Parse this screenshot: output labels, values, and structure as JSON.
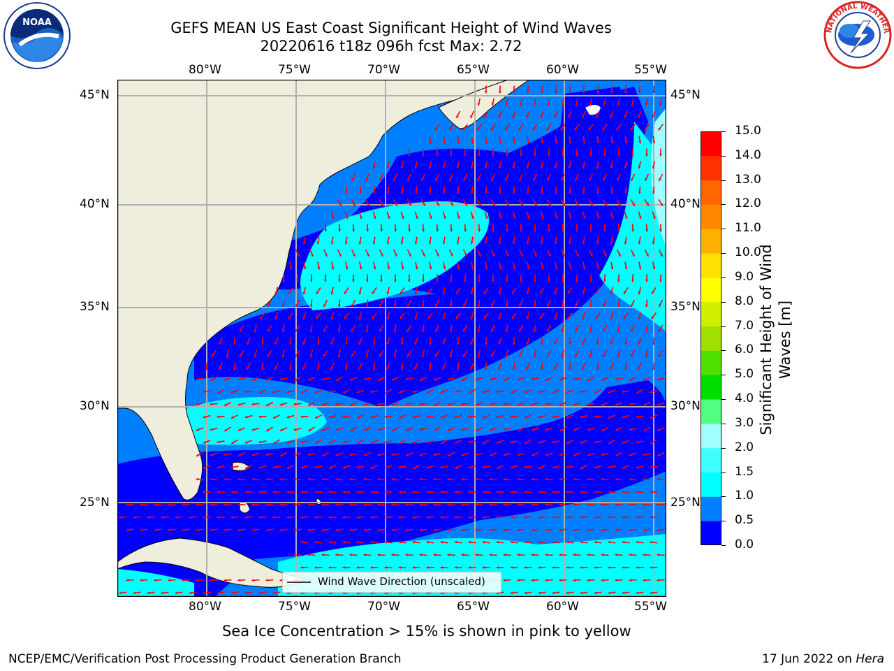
{
  "header": {
    "title_line1": "GEFS MEAN US East Coast Significant Height of Wind Waves",
    "title_line2": "20220616 t18z 096h fcst   Max: 2.72"
  },
  "logos": {
    "left": "noaa-logo",
    "right": "nws-logo",
    "left_text": "NOAA",
    "right_text": "NATIONAL WEATHER SERVICE"
  },
  "map": {
    "lon_labels": [
      "80°W",
      "75°W",
      "70°W",
      "65°W",
      "60°W",
      "55°W"
    ],
    "lat_labels": [
      "45°N",
      "40°N",
      "35°N",
      "30°N",
      "25°N"
    ],
    "legend_label": "Wind Wave Direction (unscaled)",
    "land_color": "#efeedc",
    "arrow_color": "#ff0000"
  },
  "colorbar": {
    "title": "Significant Height of Wind Waves [m]",
    "title_line1": "Significant Height of Wind",
    "title_line2": "Waves [m]",
    "labels": [
      "0.0",
      "0.5",
      "1.0",
      "1.5",
      "2.0",
      "3.0",
      "4.0",
      "5.0",
      "6.0",
      "7.0",
      "8.0",
      "9.0",
      "10.0",
      "11.0",
      "12.0",
      "13.0",
      "14.0",
      "15.0"
    ],
    "colors": [
      "#0000ff",
      "#0080ff",
      "#00ffff",
      "#40ffff",
      "#a0ffff",
      "#50ff80",
      "#00e000",
      "#50e000",
      "#a0e000",
      "#d0f000",
      "#ffff00",
      "#ffe000",
      "#ffb000",
      "#ff8800",
      "#ff6600",
      "#ff3300",
      "#ff0000"
    ]
  },
  "notes": {
    "sea_ice": "Sea Ice Concentration > 15% is shown in pink to yellow"
  },
  "footer": {
    "left": "NCEP/EMC/Verification Post Processing Product Generation Branch",
    "right_prefix": "17 Jun 2022 on ",
    "right_machine": "Hera"
  }
}
